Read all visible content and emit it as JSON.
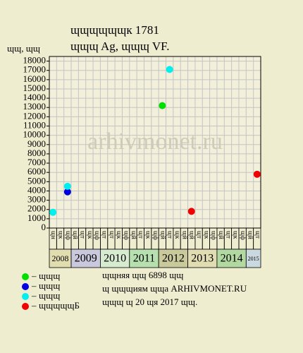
{
  "chart_data": {
    "type": "scatter",
    "title": "ɰɰɰɰɰɰк 1781",
    "subtitle": "ɰɰɰ Ag, ɰɰɰ VF.",
    "y_label": "ɰɰ, ɰɰ",
    "watermark": "arhivmonet.ru",
    "ylim": [
      0,
      18500
    ],
    "yticks": [
      0,
      1000,
      2000,
      3000,
      4000,
      5000,
      6000,
      7000,
      8000,
      9000,
      10000,
      11000,
      12000,
      13000,
      14000,
      15000,
      16000,
      17000,
      18000
    ],
    "grid": true,
    "categories": [
      "ɰн",
      "ɰк",
      "ɰф",
      "ɰй",
      "ɰт",
      "ɰк",
      "ɰф",
      "ɰт",
      "ɰт",
      "ɰк",
      "ɰф",
      "ɰй",
      "ɰт",
      "ɰк",
      "ɰф",
      "ɰй",
      "ɰт",
      "ɰк",
      "ɰй",
      "ɰй",
      "ɰт",
      "ɰк",
      "ɰф",
      "ɰй",
      "ɰт",
      "ɰк",
      "ɰф",
      "ɰй",
      "ɰт"
    ],
    "years": [
      {
        "label": "2008",
        "span": 3,
        "color": "#e2ddb0"
      },
      {
        "label": "2009",
        "span": 4,
        "color": "#cac8dc"
      },
      {
        "label": "2010",
        "span": 4,
        "color": "#d6ebcf"
      },
      {
        "label": "2011",
        "span": 4,
        "color": "#b7e0b0"
      },
      {
        "label": "2012",
        "span": 4,
        "color": "#c9c99c"
      },
      {
        "label": "2013",
        "span": 4,
        "color": "#e2dcb2"
      },
      {
        "label": "2014",
        "span": 4,
        "color": "#b2d9a2"
      },
      {
        "label": "2015",
        "span": 2,
        "color": "#cad8e0"
      }
    ],
    "series": [
      {
        "name": "ɰɰɰ",
        "color": "#00e000",
        "values": [
          null,
          null,
          null,
          null,
          null,
          null,
          null,
          null,
          null,
          null,
          null,
          null,
          null,
          null,
          null,
          13200,
          null,
          null,
          null,
          null,
          null,
          null,
          null,
          null,
          null,
          null,
          null,
          null,
          null
        ]
      },
      {
        "name": "ɰɰɰ",
        "color": "#0000e0",
        "values": [
          null,
          null,
          3900,
          null,
          null,
          null,
          null,
          null,
          null,
          null,
          null,
          null,
          null,
          null,
          null,
          null,
          null,
          null,
          null,
          null,
          null,
          null,
          null,
          null,
          null,
          null,
          null,
          null,
          null
        ]
      },
      {
        "name": "ɰɰɰ",
        "color": "#00f0f0",
        "values": [
          1700,
          null,
          4500,
          null,
          null,
          null,
          null,
          null,
          null,
          null,
          null,
          null,
          null,
          null,
          null,
          null,
          17100,
          null,
          null,
          null,
          null,
          null,
          null,
          null,
          null,
          null,
          null,
          null,
          null
        ]
      },
      {
        "name": "ɰɰɰɰɰБ",
        "color": "#f00000",
        "values": [
          null,
          null,
          null,
          null,
          null,
          null,
          null,
          null,
          null,
          null,
          null,
          null,
          null,
          null,
          null,
          null,
          null,
          null,
          null,
          1800,
          null,
          null,
          null,
          null,
          null,
          null,
          null,
          null,
          5800
        ]
      }
    ],
    "notes": [
      "ɰɰняя ɰɰ 6898 ɰɰ",
      "ɰ ɰɰɰиям ɰɰа ARHIVMONET.RU",
      "ɰɰɰ ɰ 20 ɰя 2017 ɰɰ."
    ]
  }
}
